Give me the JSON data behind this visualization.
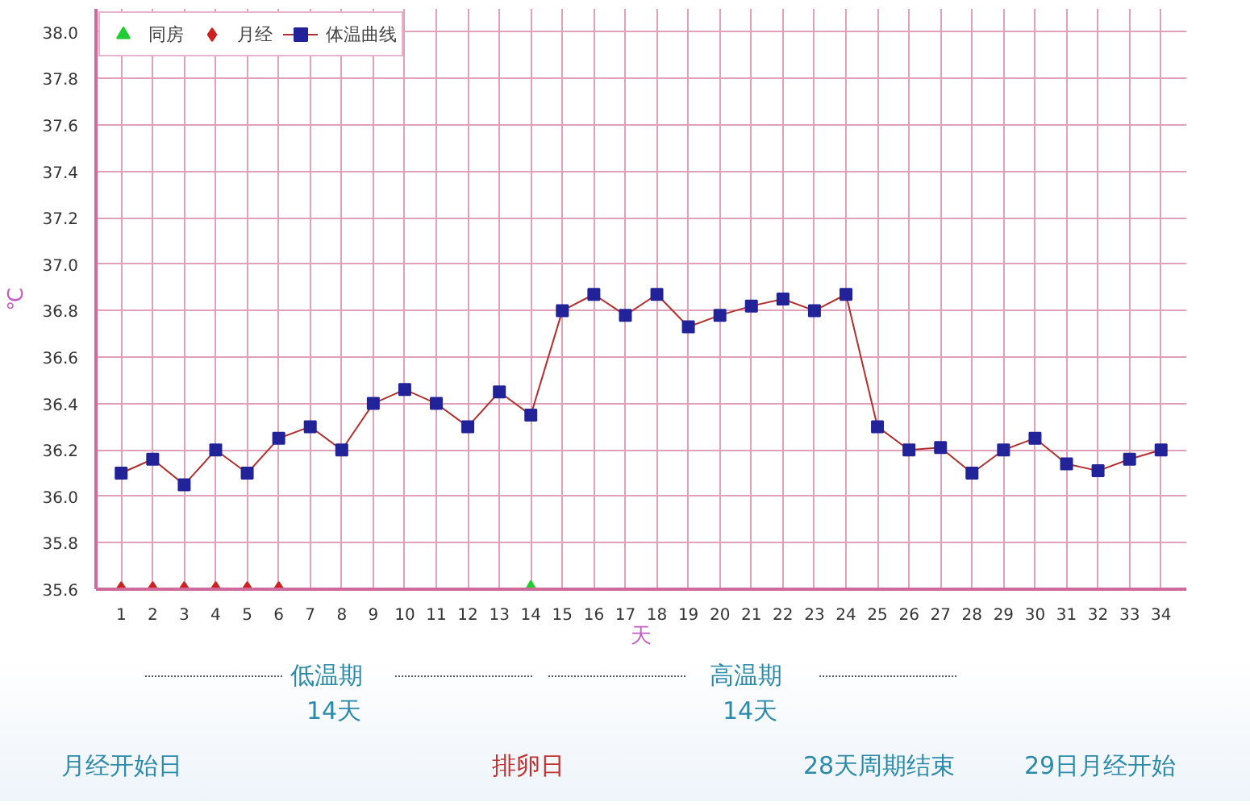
{
  "chart_data": {
    "type": "line",
    "ylabel": "℃",
    "xlabel": "天",
    "x": [
      1,
      2,
      3,
      4,
      5,
      6,
      7,
      8,
      9,
      10,
      11,
      12,
      13,
      14,
      15,
      16,
      17,
      18,
      19,
      20,
      21,
      22,
      23,
      24,
      25,
      26,
      27,
      28,
      29,
      30,
      31,
      32,
      33,
      34
    ],
    "series": [
      {
        "name": "同房",
        "type": "scatter",
        "marker": "triangle",
        "color": "#22cc33",
        "x": [
          14
        ],
        "values": [
          35.6
        ]
      },
      {
        "name": "月经",
        "type": "scatter",
        "marker": "diamond",
        "color": "#cc2222",
        "x": [
          1,
          2,
          3,
          4,
          5,
          6
        ],
        "values": [
          35.6,
          35.6,
          35.6,
          35.6,
          35.6,
          35.6
        ]
      },
      {
        "name": "体温曲线",
        "marker": "square",
        "color": "#222299",
        "values": [
          36.1,
          36.16,
          36.05,
          36.2,
          36.1,
          36.25,
          36.3,
          36.2,
          36.4,
          36.46,
          36.4,
          36.3,
          36.45,
          36.35,
          36.8,
          36.87,
          36.78,
          36.87,
          36.73,
          36.78,
          36.82,
          36.85,
          36.8,
          36.87,
          36.3,
          36.2,
          36.21,
          36.1,
          36.2,
          36.25,
          36.14,
          36.11,
          36.16,
          36.2
        ]
      }
    ],
    "xlim": [
      0.2,
      34.8
    ],
    "xticks": [
      1,
      2,
      3,
      4,
      5,
      6,
      7,
      8,
      9,
      10,
      11,
      12,
      13,
      14,
      15,
      16,
      17,
      18,
      19,
      20,
      21,
      22,
      23,
      24,
      25,
      26,
      27,
      28,
      29,
      30,
      31,
      32,
      33,
      34
    ],
    "ylim": [
      35.6,
      38.1
    ],
    "yticks": [
      {
        "value": 35.6,
        "label": "35.6"
      },
      {
        "value": 35.8,
        "label": "35.8"
      },
      {
        "value": 36.0,
        "label": "36.0"
      },
      {
        "value": 36.2,
        "label": "36.2"
      },
      {
        "value": 36.4,
        "label": "36.4"
      },
      {
        "value": 36.6,
        "label": "36.6"
      },
      {
        "value": 36.8,
        "label": "36.8"
      },
      {
        "value": 37.0,
        "label": "37.0"
      },
      {
        "value": 37.2,
        "label": "37.2"
      },
      {
        "value": 37.4,
        "label": "37.4"
      },
      {
        "value": 37.6,
        "label": "37.6"
      },
      {
        "value": 37.8,
        "label": "37.8"
      },
      {
        "value": 38.0,
        "label": "38.0"
      }
    ],
    "grid": true,
    "legend": "top left",
    "annotations": [
      "低温期",
      "14天",
      "高温期",
      "14天",
      "月经开始日",
      "排卵日",
      "28天周期结束",
      "29日月经开始"
    ]
  }
}
